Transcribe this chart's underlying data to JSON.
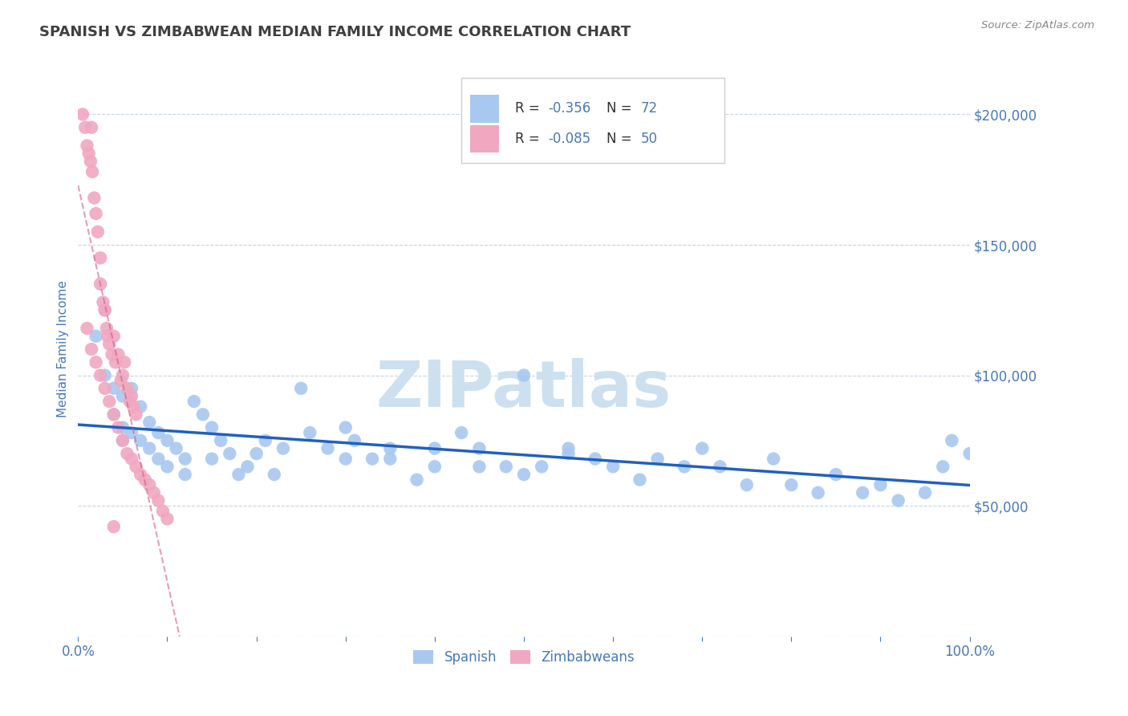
{
  "title": "SPANISH VS ZIMBABWEAN MEDIAN FAMILY INCOME CORRELATION CHART",
  "source_text": "Source: ZipAtlas.com",
  "ylabel": "Median Family Income",
  "xlim": [
    0.0,
    1.0
  ],
  "ylim": [
    0,
    220000
  ],
  "yticks": [
    0,
    50000,
    100000,
    150000,
    200000
  ],
  "ytick_labels": [
    "",
    "$50,000",
    "$100,000",
    "$150,000",
    "$200,000"
  ],
  "xtick_labels": [
    "0.0%",
    "",
    "",
    "",
    "",
    "",
    "",
    "",
    "",
    "",
    "100.0%"
  ],
  "xticks": [
    0.0,
    0.1,
    0.2,
    0.3,
    0.4,
    0.5,
    0.6,
    0.7,
    0.8,
    0.9,
    1.0
  ],
  "spanish_color": "#a8c8f0",
  "zimbabwean_color": "#f0a8c0",
  "trend_spanish_color": "#2060c0",
  "trend_zimbabwean_color": "#d06080",
  "watermark_text": "ZIPatlas",
  "watermark_color": "#cce0f0",
  "title_color": "#404040",
  "tick_color": "#4878b8",
  "legend_label_color": "#333333",
  "legend_value_color": "#4878b8",
  "spanish_x": [
    0.02,
    0.03,
    0.04,
    0.04,
    0.05,
    0.05,
    0.05,
    0.06,
    0.06,
    0.07,
    0.07,
    0.08,
    0.08,
    0.09,
    0.09,
    0.1,
    0.1,
    0.11,
    0.12,
    0.12,
    0.13,
    0.14,
    0.15,
    0.15,
    0.16,
    0.17,
    0.18,
    0.19,
    0.2,
    0.21,
    0.22,
    0.23,
    0.25,
    0.26,
    0.28,
    0.3,
    0.31,
    0.33,
    0.35,
    0.38,
    0.4,
    0.43,
    0.45,
    0.48,
    0.5,
    0.52,
    0.55,
    0.58,
    0.6,
    0.63,
    0.65,
    0.68,
    0.7,
    0.72,
    0.75,
    0.78,
    0.8,
    0.83,
    0.85,
    0.88,
    0.9,
    0.92,
    0.95,
    0.97,
    0.98,
    1.0,
    0.3,
    0.35,
    0.4,
    0.45,
    0.5,
    0.55
  ],
  "spanish_y": [
    115000,
    100000,
    95000,
    85000,
    92000,
    80000,
    75000,
    95000,
    78000,
    88000,
    75000,
    82000,
    72000,
    78000,
    68000,
    75000,
    65000,
    72000,
    68000,
    62000,
    90000,
    85000,
    80000,
    68000,
    75000,
    70000,
    62000,
    65000,
    70000,
    75000,
    62000,
    72000,
    95000,
    78000,
    72000,
    68000,
    75000,
    68000,
    72000,
    60000,
    65000,
    78000,
    72000,
    65000,
    100000,
    65000,
    72000,
    68000,
    65000,
    60000,
    68000,
    65000,
    72000,
    65000,
    58000,
    68000,
    58000,
    55000,
    62000,
    55000,
    58000,
    52000,
    55000,
    65000,
    75000,
    70000,
    80000,
    68000,
    72000,
    65000,
    62000,
    70000
  ],
  "zimbabwean_x": [
    0.005,
    0.008,
    0.01,
    0.012,
    0.014,
    0.015,
    0.016,
    0.018,
    0.02,
    0.022,
    0.025,
    0.025,
    0.028,
    0.03,
    0.03,
    0.032,
    0.033,
    0.035,
    0.038,
    0.04,
    0.042,
    0.045,
    0.048,
    0.05,
    0.052,
    0.055,
    0.058,
    0.06,
    0.062,
    0.065,
    0.01,
    0.015,
    0.02,
    0.025,
    0.03,
    0.035,
    0.04,
    0.045,
    0.05,
    0.055,
    0.06,
    0.065,
    0.07,
    0.075,
    0.08,
    0.085,
    0.09,
    0.095,
    0.1,
    0.04
  ],
  "zimbabwean_y": [
    200000,
    195000,
    188000,
    185000,
    182000,
    195000,
    178000,
    168000,
    162000,
    155000,
    145000,
    135000,
    128000,
    125000,
    125000,
    118000,
    115000,
    112000,
    108000,
    115000,
    105000,
    108000,
    98000,
    100000,
    105000,
    95000,
    90000,
    92000,
    88000,
    85000,
    118000,
    110000,
    105000,
    100000,
    95000,
    90000,
    85000,
    80000,
    75000,
    70000,
    68000,
    65000,
    62000,
    60000,
    58000,
    55000,
    52000,
    48000,
    45000,
    42000
  ]
}
